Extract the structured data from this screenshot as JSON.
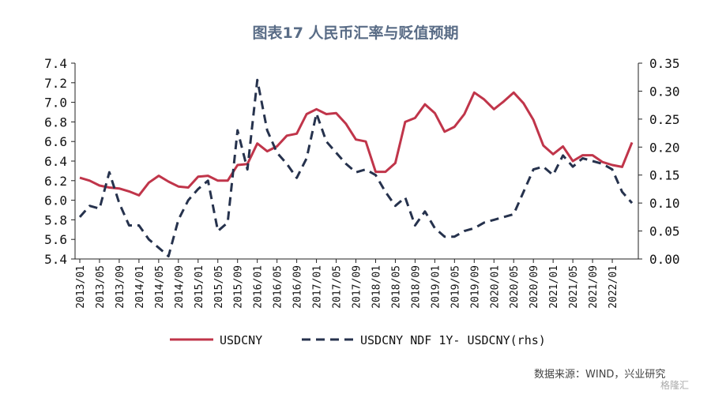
{
  "chart_data": {
    "type": "line",
    "title": "图表17 人民币汇率与贬值预期",
    "x": [
      "2013/01",
      "2013/03",
      "2013/05",
      "2013/07",
      "2013/09",
      "2013/11",
      "2014/01",
      "2014/03",
      "2014/05",
      "2014/07",
      "2014/09",
      "2014/11",
      "2015/01",
      "2015/03",
      "2015/05",
      "2015/07",
      "2015/09",
      "2015/11",
      "2016/01",
      "2016/03",
      "2016/05",
      "2016/07",
      "2016/09",
      "2016/11",
      "2017/01",
      "2017/03",
      "2017/05",
      "2017/07",
      "2017/09",
      "2017/11",
      "2018/01",
      "2018/03",
      "2018/05",
      "2018/07",
      "2018/09",
      "2018/11",
      "2019/01",
      "2019/03",
      "2019/05",
      "2019/07",
      "2019/09",
      "2019/11",
      "2020/01",
      "2020/03",
      "2020/05",
      "2020/07",
      "2020/09",
      "2020/11",
      "2021/01",
      "2021/03",
      "2021/05",
      "2021/07",
      "2021/09",
      "2021/11",
      "2022/01",
      "2022/03",
      "2022/05"
    ],
    "x_tick_labels": [
      "2013/01",
      "2013/05",
      "2013/09",
      "2014/01",
      "2014/05",
      "2014/09",
      "2015/01",
      "2015/05",
      "2015/09",
      "2016/01",
      "2016/05",
      "2016/09",
      "2017/01",
      "2017/05",
      "2017/09",
      "2018/01",
      "2018/05",
      "2018/09",
      "2019/01",
      "2019/05",
      "2019/09",
      "2020/01",
      "2020/05",
      "2020/09",
      "2021/01",
      "2021/05",
      "2021/09",
      "2022/01"
    ],
    "series": [
      {
        "name": "USDCNY",
        "axis": "left",
        "color": "#c0354a",
        "dash": "solid",
        "values": [
          6.23,
          6.2,
          6.15,
          6.13,
          6.12,
          6.09,
          6.05,
          6.18,
          6.25,
          6.19,
          6.14,
          6.13,
          6.24,
          6.25,
          6.2,
          6.2,
          6.36,
          6.37,
          6.58,
          6.5,
          6.55,
          6.66,
          6.68,
          6.88,
          6.93,
          6.88,
          6.89,
          6.78,
          6.62,
          6.6,
          6.29,
          6.29,
          6.38,
          6.8,
          6.84,
          6.98,
          6.89,
          6.7,
          6.75,
          6.88,
          7.1,
          7.03,
          6.93,
          7.01,
          7.1,
          6.99,
          6.82,
          6.56,
          6.47,
          6.55,
          6.4,
          6.46,
          6.46,
          6.39,
          6.36,
          6.34,
          6.59
        ]
      },
      {
        "name": "USDCNY NDF 1Y- USDCNY(rhs)",
        "axis": "right",
        "color": "#26324d",
        "dash": "dashed",
        "values": [
          0.075,
          0.095,
          0.09,
          0.155,
          0.1,
          0.06,
          0.06,
          0.035,
          0.02,
          0.005,
          0.07,
          0.105,
          0.125,
          0.14,
          0.05,
          0.065,
          0.23,
          0.16,
          0.32,
          0.23,
          0.19,
          0.17,
          0.145,
          0.18,
          0.26,
          0.21,
          0.19,
          0.17,
          0.155,
          0.16,
          0.15,
          0.12,
          0.095,
          0.11,
          0.06,
          0.085,
          0.055,
          0.04,
          0.04,
          0.05,
          0.055,
          0.065,
          0.07,
          0.075,
          0.08,
          0.12,
          0.16,
          0.165,
          0.15,
          0.185,
          0.165,
          0.18,
          0.175,
          0.17,
          0.16,
          0.12,
          0.1
        ]
      }
    ],
    "y_left": {
      "min": 5.4,
      "max": 7.4,
      "ticks": [
        "5.4",
        "5.6",
        "5.8",
        "6.0",
        "6.2",
        "6.4",
        "6.6",
        "6.8",
        "7.0",
        "7.2",
        "7.4"
      ]
    },
    "y_right": {
      "min": 0.0,
      "max": 0.35,
      "ticks": [
        "0.00",
        "0.05",
        "0.10",
        "0.15",
        "0.20",
        "0.25",
        "0.30",
        "0.35"
      ]
    },
    "grid": false,
    "legend_position": "bottom"
  },
  "source": "数据来源：WIND，兴业研究",
  "watermark": "格隆汇"
}
